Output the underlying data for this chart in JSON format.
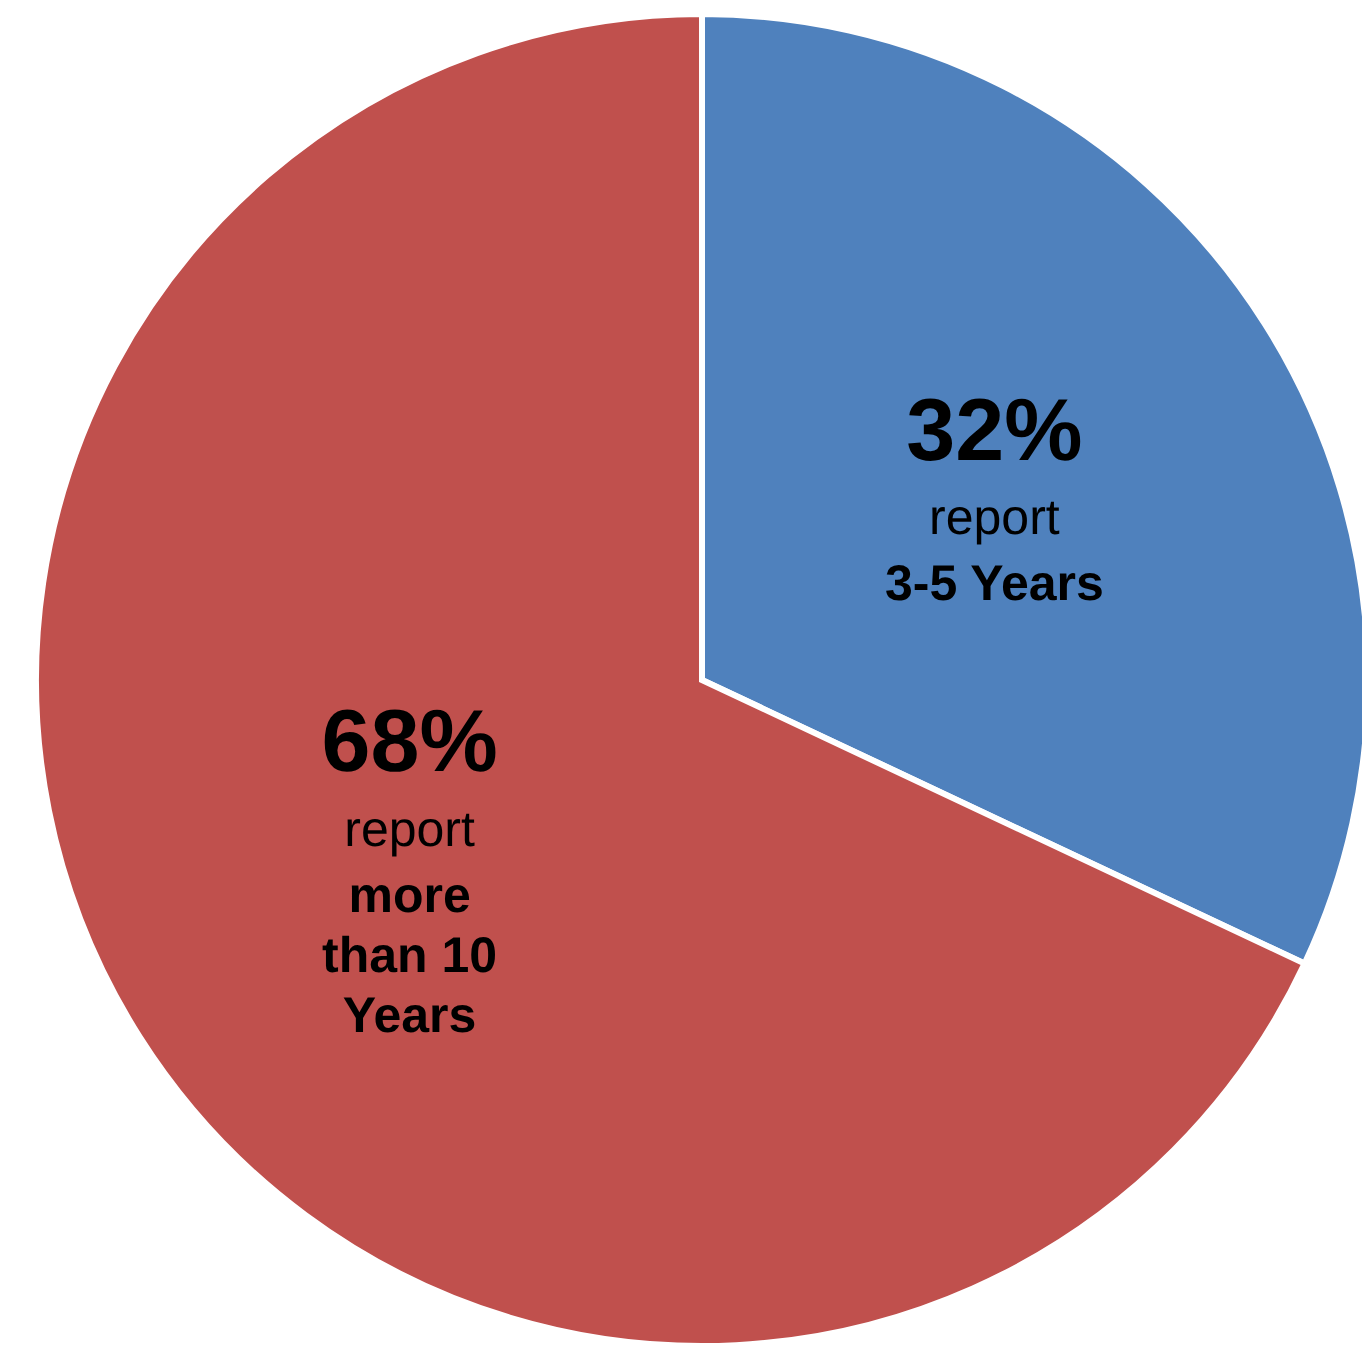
{
  "chart_data": {
    "type": "pie",
    "categories": [
      "3-5 Years",
      "more than 10 Years"
    ],
    "values": [
      32,
      68
    ],
    "colors": [
      "#4f81bd",
      "#c0504d"
    ],
    "value_labels": [
      "32%",
      "68%"
    ],
    "annotations": [
      {
        "text": "report",
        "x": "3-5 Years"
      },
      {
        "text": "report",
        "x": "more than 10 Years"
      }
    ]
  }
}
